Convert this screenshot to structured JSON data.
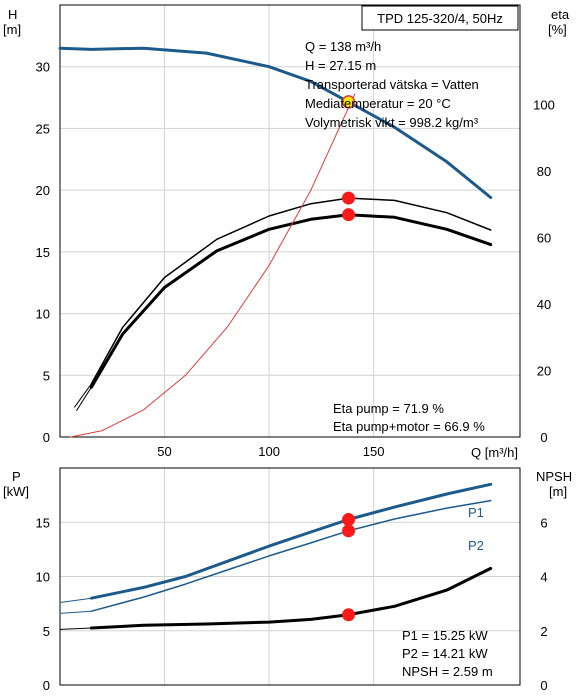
{
  "chart_data": [
    {
      "type": "line",
      "title": "TPD 125-320/4, 50Hz",
      "xlabel": "Q [m³/h]",
      "ylabel_left": [
        "H",
        "[m]"
      ],
      "ylabel_right": [
        "eta",
        "[%]"
      ],
      "xlim": [
        0,
        220
      ],
      "ylim_left": [
        0,
        35
      ],
      "ylim_right": [
        0,
        130
      ],
      "xticks": [
        "50",
        "100",
        "150"
      ],
      "yticks_left": [
        "0",
        "5",
        "10",
        "15",
        "20",
        "25",
        "30"
      ],
      "yticks_right": [
        "0",
        "20",
        "40",
        "60",
        "80",
        "100"
      ],
      "grid": true,
      "series": [
        {
          "key": "H",
          "axis": "left",
          "color": "#1d5a8c",
          "width": 3,
          "x": [
            0,
            15,
            40,
            70,
            100,
            120,
            138,
            160,
            185,
            206
          ],
          "y": [
            31.5,
            31.4,
            31.5,
            31.1,
            30.0,
            28.8,
            27.15,
            25.1,
            22.3,
            19.4
          ]
        },
        {
          "key": "eta_pump",
          "axis": "right",
          "color": "#000000",
          "width": 1.5,
          "x": [
            15,
            30,
            50,
            75,
            100,
            120,
            138,
            160,
            185,
            206
          ],
          "y": [
            16,
            33,
            48,
            59.5,
            66.5,
            70.2,
            71.9,
            71.2,
            67.5,
            62.3
          ]
        },
        {
          "key": "eta_pump_motor",
          "axis": "right",
          "color": "#000000",
          "width": 3,
          "x": [
            15,
            30,
            50,
            75,
            100,
            120,
            138,
            160,
            185,
            206
          ],
          "y": [
            15,
            31,
            45,
            56,
            62.5,
            65.5,
            66.9,
            66.1,
            62.5,
            57.9
          ]
        },
        {
          "key": "system",
          "axis": "left",
          "color": "#e03c3c",
          "width": 1,
          "x": [
            5,
            20,
            40,
            60,
            80,
            100,
            120,
            141
          ],
          "y": [
            0,
            0.5,
            2.2,
            5.0,
            8.9,
            13.9,
            20.0,
            27.8
          ]
        }
      ],
      "series_extra_lines": [
        {
          "axis": "right",
          "color": "#000000",
          "width": 1,
          "x": [
            7,
            15
          ],
          "y": [
            9,
            16
          ]
        },
        {
          "axis": "right",
          "color": "#000000",
          "width": 1,
          "x": [
            8,
            15
          ],
          "y": [
            8,
            15
          ]
        }
      ],
      "markers": [
        {
          "axis": "left",
          "x": 138,
          "y": 27.15,
          "style": "yellow"
        },
        {
          "axis": "right",
          "x": 138,
          "y": 71.9,
          "style": "red"
        },
        {
          "axis": "right",
          "x": 138,
          "y": 66.9,
          "style": "red"
        }
      ],
      "info_lines": [
        "Q = 138 m³/h",
        "H = 27.15 m",
        "Transporterad vätska = Vatten",
        "Mediatemperatur = 20 °C",
        "Volymetrisk vikt = 998.2 kg/m³"
      ],
      "eta_lines": [
        "Eta pump = 71.9 %",
        "Eta pump+motor = 66.9 %"
      ]
    },
    {
      "type": "line",
      "ylabel_left": [
        "P",
        "[kW]"
      ],
      "ylabel_right": [
        "NPSH",
        "[m]"
      ],
      "xlim": [
        0,
        220
      ],
      "ylim_left": [
        0,
        20
      ],
      "ylim_right": [
        0,
        8
      ],
      "yticks_left": [
        "0",
        "5",
        "10",
        "15"
      ],
      "yticks_right": [
        "0",
        "2",
        "4",
        "6"
      ],
      "grid": true,
      "series": [
        {
          "name": "P1",
          "axis": "left",
          "color": "#1d5a8c",
          "width": 3,
          "x": [
            15,
            40,
            60,
            80,
            100,
            120,
            138,
            160,
            185,
            206
          ],
          "y": [
            8.0,
            9.0,
            10.0,
            11.4,
            12.8,
            14.1,
            15.25,
            16.4,
            17.6,
            18.5
          ]
        },
        {
          "name": "P2",
          "axis": "left",
          "color": "#1d5a8c",
          "width": 1.5,
          "x": [
            15,
            40,
            60,
            80,
            100,
            120,
            138,
            160,
            185,
            206
          ],
          "y": [
            6.8,
            8.1,
            9.3,
            10.6,
            11.9,
            13.1,
            14.21,
            15.3,
            16.3,
            17.0
          ]
        },
        {
          "key": "npsh",
          "axis": "right",
          "color": "#000000",
          "width": 3,
          "x": [
            15,
            40,
            70,
            100,
            120,
            138,
            160,
            185,
            206
          ],
          "y": [
            2.1,
            2.2,
            2.25,
            2.32,
            2.42,
            2.59,
            2.9,
            3.5,
            4.3
          ]
        }
      ],
      "series_extra_lines": [
        {
          "axis": "left",
          "color": "#1d5a8c",
          "width": 1,
          "x": [
            0,
            15
          ],
          "y": [
            7.6,
            8.0
          ]
        },
        {
          "axis": "left",
          "color": "#1d5a8c",
          "width": 1,
          "x": [
            0,
            15
          ],
          "y": [
            6.6,
            6.8
          ]
        },
        {
          "axis": "right",
          "color": "#000000",
          "width": 1,
          "x": [
            0,
            15
          ],
          "y": [
            2.05,
            2.1
          ]
        }
      ],
      "markers": [
        {
          "axis": "left",
          "x": 138,
          "y": 15.25,
          "style": "red"
        },
        {
          "axis": "left",
          "x": 138,
          "y": 14.21,
          "style": "red"
        },
        {
          "axis": "right",
          "x": 138,
          "y": 2.59,
          "style": "red"
        }
      ],
      "series_labels": [
        "P1",
        "P2"
      ],
      "info_lines": [
        "P1 = 15.25 kW",
        "P2 = 14.21 kW",
        "NPSH = 2.59 m"
      ]
    }
  ]
}
